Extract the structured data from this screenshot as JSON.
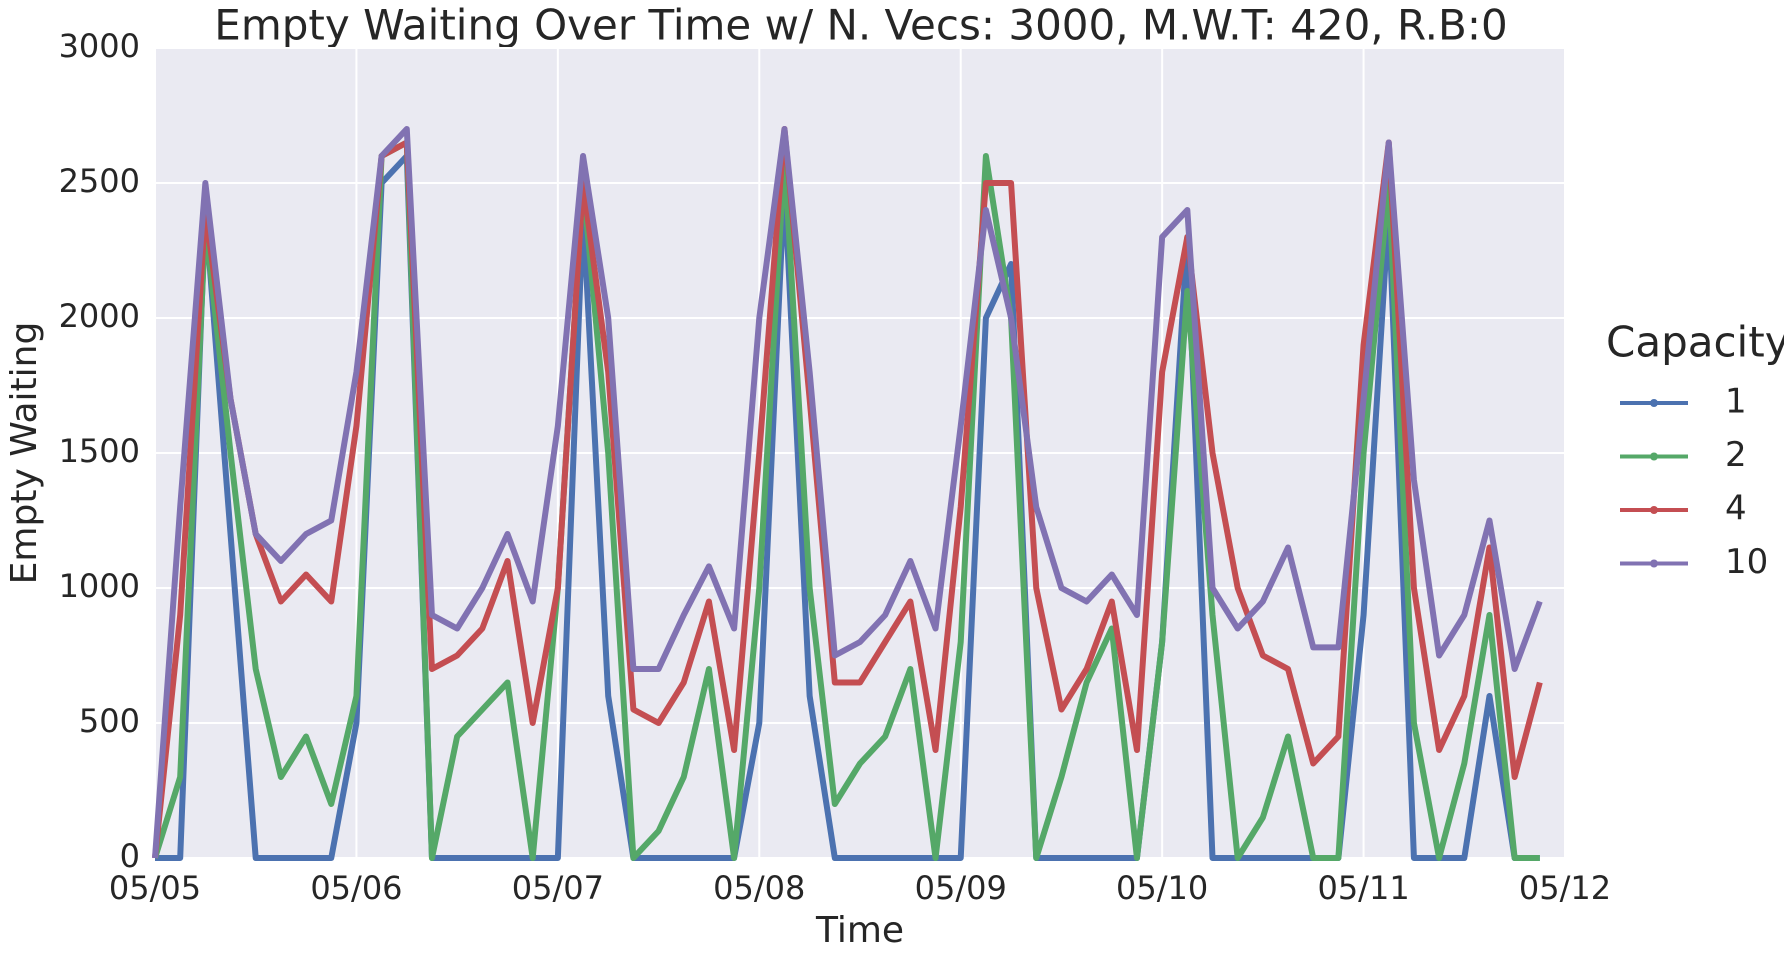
{
  "chart_data": {
    "type": "line",
    "title": "Empty Waiting Over Time w/ N. Vecs: 3000, M.W.T: 420, R.B:0",
    "x_label": "Time",
    "y_label": "Empty Waiting",
    "legend_title": "Capacity",
    "legend": "right",
    "grid": true,
    "x": [
      0,
      0.125,
      0.25,
      0.375,
      0.5,
      0.625,
      0.75,
      0.875,
      1,
      1.125,
      1.25,
      1.375,
      1.5,
      1.625,
      1.75,
      1.875,
      2,
      2.125,
      2.25,
      2.375,
      2.5,
      2.625,
      2.75,
      2.875,
      3,
      3.125,
      3.25,
      3.375,
      3.5,
      3.625,
      3.75,
      3.875,
      4,
      4.125,
      4.25,
      4.375,
      4.5,
      4.625,
      4.75,
      4.875,
      5,
      5.125,
      5.25,
      5.375,
      5.5,
      5.625,
      5.75,
      5.875,
      6,
      6.125,
      6.25,
      6.375,
      6.5,
      6.625,
      6.75,
      6.875
    ],
    "xlim": [
      0,
      7
    ],
    "xticks": [
      {
        "value": 0,
        "label": "05/05"
      },
      {
        "value": 1,
        "label": "05/06"
      },
      {
        "value": 2,
        "label": "05/07"
      },
      {
        "value": 3,
        "label": "05/08"
      },
      {
        "value": 4,
        "label": "05/09"
      },
      {
        "value": 5,
        "label": "05/10"
      },
      {
        "value": 6,
        "label": "05/11"
      },
      {
        "value": 7,
        "label": "05/12"
      }
    ],
    "ylim": [
      0,
      3000
    ],
    "yticks": [
      0,
      500,
      1000,
      1500,
      2000,
      2500,
      3000
    ],
    "series": [
      {
        "name": "1",
        "color": "#4c72b0",
        "values": [
          0,
          0,
          2400,
          1200,
          0,
          0,
          0,
          0,
          500,
          2500,
          2600,
          0,
          0,
          0,
          0,
          0,
          0,
          2400,
          600,
          0,
          0,
          0,
          0,
          0,
          500,
          2500,
          600,
          0,
          0,
          0,
          0,
          0,
          0,
          2000,
          2200,
          0,
          0,
          0,
          0,
          0,
          800,
          2300,
          0,
          0,
          0,
          0,
          0,
          0,
          900,
          2400,
          0,
          0,
          0,
          600,
          0,
          0
        ]
      },
      {
        "name": "2",
        "color": "#55a868",
        "values": [
          0,
          300,
          2350,
          1500,
          700,
          300,
          450,
          200,
          600,
          2600,
          2650,
          0,
          450,
          550,
          650,
          0,
          1000,
          2500,
          1500,
          0,
          100,
          300,
          700,
          0,
          1000,
          2600,
          1000,
          200,
          350,
          450,
          700,
          0,
          800,
          2600,
          2000,
          0,
          300,
          650,
          850,
          0,
          800,
          2100,
          900,
          0,
          150,
          450,
          0,
          0,
          1500,
          2500,
          500,
          0,
          350,
          900,
          0,
          0
        ]
      },
      {
        "name": "4",
        "color": "#c44e52",
        "values": [
          0,
          900,
          2400,
          1700,
          1200,
          950,
          1050,
          950,
          1600,
          2600,
          2650,
          700,
          750,
          850,
          1100,
          500,
          1000,
          2500,
          1800,
          550,
          500,
          650,
          950,
          400,
          1500,
          2700,
          1700,
          650,
          650,
          800,
          950,
          400,
          1300,
          2500,
          2500,
          1000,
          550,
          700,
          950,
          400,
          1800,
          2300,
          1500,
          1000,
          750,
          700,
          350,
          450,
          1900,
          2650,
          1000,
          400,
          600,
          1150,
          300,
          650
        ]
      },
      {
        "name": "10",
        "color": "#8172b2",
        "values": [
          0,
          1300,
          2500,
          1700,
          1200,
          1100,
          1200,
          1250,
          1800,
          2600,
          2700,
          900,
          850,
          1000,
          1200,
          950,
          1600,
          2600,
          2000,
          700,
          700,
          900,
          1080,
          850,
          2000,
          2700,
          1800,
          750,
          800,
          900,
          1100,
          850,
          1600,
          2400,
          2000,
          1300,
          1000,
          950,
          1050,
          900,
          2300,
          2400,
          1000,
          850,
          950,
          1150,
          780,
          780,
          1700,
          2650,
          1400,
          750,
          900,
          1250,
          700,
          950
        ]
      }
    ]
  }
}
